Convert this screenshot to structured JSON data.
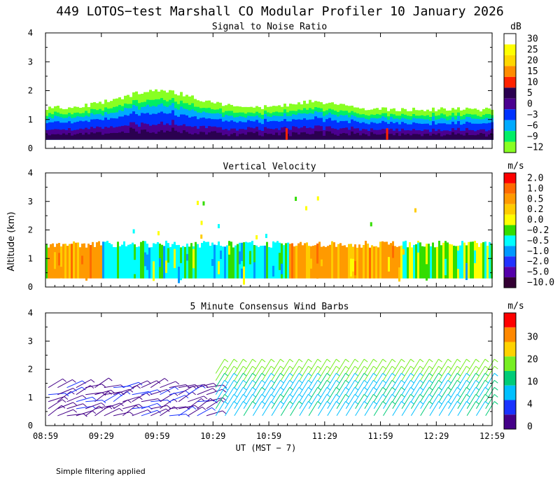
{
  "figure": {
    "title": "449 LOTOS−test Marshall CO Modular Profiler 10 January 2026",
    "ylabel": "Altitude (km)",
    "xlabel": "UT  (MST − 7)",
    "xticks": [
      "08:59",
      "09:29",
      "09:59",
      "10:29",
      "10:59",
      "11:29",
      "11:59",
      "12:29",
      "12:59"
    ],
    "footnote": "Simple filtering applied"
  },
  "chart_data": [
    {
      "type": "heatmap",
      "title": "Signal to Noise Ratio",
      "x_hours": [
        8.983,
        12.983
      ],
      "ylim": [
        0,
        4
      ],
      "yticks": [
        0,
        1,
        2,
        3,
        4
      ],
      "colorbar": {
        "unit": "dB",
        "labels": [
          "30",
          "25",
          "20",
          "15",
          "10",
          "5",
          "0",
          "−3",
          "−6",
          "−9",
          "−12"
        ],
        "colors": [
          "#ffffff",
          "#ffff00",
          "#ffd700",
          "#ff8c00",
          "#ff2200",
          "#2b0050",
          "#4b0090",
          "#0033ff",
          "#00aaff",
          "#00ee66",
          "#88ff22"
        ]
      },
      "profile": {
        "top_km_start": 1.4,
        "top_km_peak": 2.0,
        "top_km_end": 1.35,
        "dominant_dB": [
          5,
          0,
          -3,
          -6,
          -9,
          -12
        ]
      }
    },
    {
      "type": "heatmap",
      "title": "Vertical Velocity",
      "x_hours": [
        8.983,
        12.983
      ],
      "ylim": [
        0,
        4
      ],
      "yticks": [
        0,
        1,
        2,
        3,
        4
      ],
      "colorbar": {
        "unit": "m/s",
        "labels": [
          "2.0",
          "1.0",
          "0.5",
          "0.2",
          "0.0",
          "−0.2",
          "−0.5",
          "−1.0",
          "−2.0",
          "−5.0",
          "−10.0"
        ],
        "colors": [
          "#ff0000",
          "#ff6a00",
          "#ff9a00",
          "#ffcc00",
          "#ffff00",
          "#33dd00",
          "#00ffff",
          "#0099ff",
          "#2233ff",
          "#5500aa",
          "#330033"
        ]
      },
      "profile": {
        "top_km": 1.5,
        "sections": [
          {
            "from": "08:59",
            "to": "09:29",
            "value": 0.5
          },
          {
            "from": "09:29",
            "to": "10:29",
            "value": -0.5
          },
          {
            "from": "10:29",
            "to": "11:09",
            "value": -0.5
          },
          {
            "from": "11:09",
            "to": "12:09",
            "value": 0.5
          },
          {
            "from": "12:09",
            "to": "12:59",
            "value": -0.2
          }
        ]
      }
    },
    {
      "type": "wind_barbs",
      "title": "5 Minute Consensus Wind Barbs",
      "x_hours": [
        8.983,
        12.983
      ],
      "ylim": [
        0,
        4
      ],
      "yticks": [
        0,
        1,
        2,
        3,
        4
      ],
      "colorbar": {
        "unit": "m/s",
        "labels": [
          "30",
          "20",
          "10",
          "4",
          "0"
        ],
        "colors": [
          "#ff0000",
          "#ff8800",
          "#ffd200",
          "#77ee22",
          "#00cc77",
          "#00c0ff",
          "#1a33ff",
          "#440088"
        ]
      },
      "barbs": {
        "interval_min": 5,
        "levels_km": [
          0.35,
          0.6,
          0.85,
          1.1,
          1.35,
          1.6,
          1.85
        ],
        "speed_low_period": [
          0,
          3
        ],
        "speed_mid_period": [
          4,
          10
        ]
      }
    }
  ]
}
